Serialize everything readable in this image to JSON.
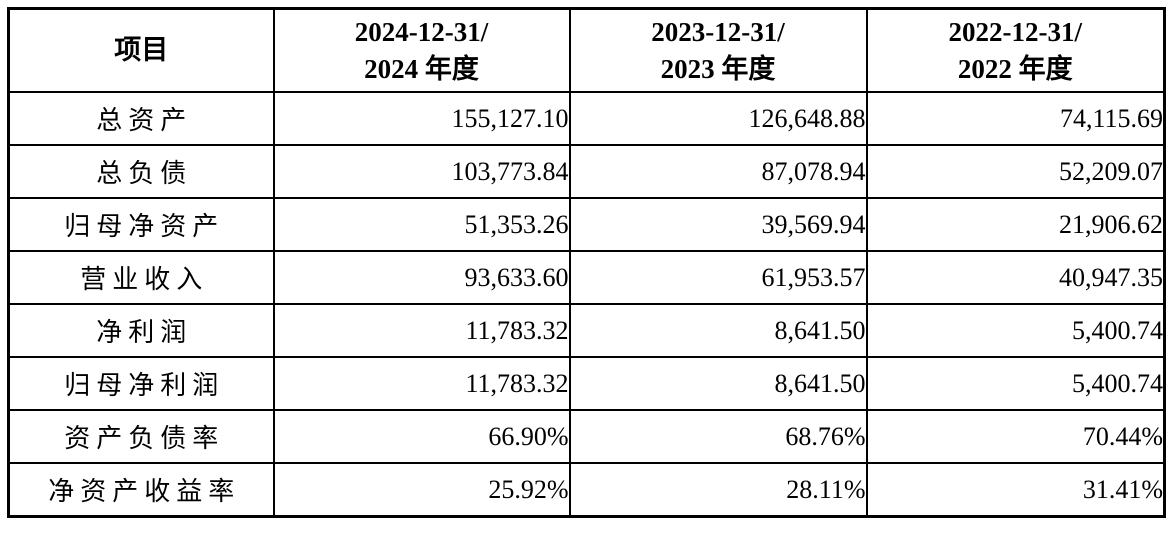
{
  "table": {
    "header": {
      "item_label": "项目",
      "periods": [
        {
          "line1": "2024-12-31/",
          "line2": "2024 年度"
        },
        {
          "line1": "2023-12-31/",
          "line2": "2023 年度"
        },
        {
          "line1": "2022-12-31/",
          "line2": "2022 年度"
        }
      ]
    },
    "rows": [
      {
        "label": "总资产",
        "values": [
          "155,127.10",
          "126,648.88",
          "74,115.69"
        ]
      },
      {
        "label": "总负债",
        "values": [
          "103,773.84",
          "87,078.94",
          "52,209.07"
        ]
      },
      {
        "label": "归母净资产",
        "values": [
          "51,353.26",
          "39,569.94",
          "21,906.62"
        ]
      },
      {
        "label": "营业收入",
        "values": [
          "93,633.60",
          "61,953.57",
          "40,947.35"
        ]
      },
      {
        "label": "净利润",
        "values": [
          "11,783.32",
          "8,641.50",
          "5,400.74"
        ]
      },
      {
        "label": "归母净利润",
        "values": [
          "11,783.32",
          "8,641.50",
          "5,400.74"
        ]
      },
      {
        "label": "资产负债率",
        "values": [
          "66.90%",
          "68.76%",
          "70.44%"
        ]
      },
      {
        "label": "净资产收益率",
        "values": [
          "25.92%",
          "28.11%",
          "31.41%"
        ]
      }
    ],
    "colors": {
      "text": "#000000",
      "border": "#000000",
      "background": "#ffffff"
    }
  },
  "chart_data": {
    "type": "table",
    "columns": [
      "项目",
      "2024-12-31/2024 年度",
      "2023-12-31/2023 年度",
      "2022-12-31/2022 年度"
    ],
    "rows": [
      [
        "总资产",
        "155,127.10",
        "126,648.88",
        "74,115.69"
      ],
      [
        "总负债",
        "103,773.84",
        "87,078.94",
        "52,209.07"
      ],
      [
        "归母净资产",
        "51,353.26",
        "39,569.94",
        "21,906.62"
      ],
      [
        "营业收入",
        "93,633.60",
        "61,953.57",
        "40,947.35"
      ],
      [
        "净利润",
        "11,783.32",
        "8,641.50",
        "5,400.74"
      ],
      [
        "归母净利润",
        "11,783.32",
        "8,641.50",
        "5,400.74"
      ],
      [
        "资产负债率",
        "66.90%",
        "68.76%",
        "70.44%"
      ],
      [
        "净资产收益率",
        "25.92%",
        "28.11%",
        "31.41%"
      ]
    ]
  }
}
